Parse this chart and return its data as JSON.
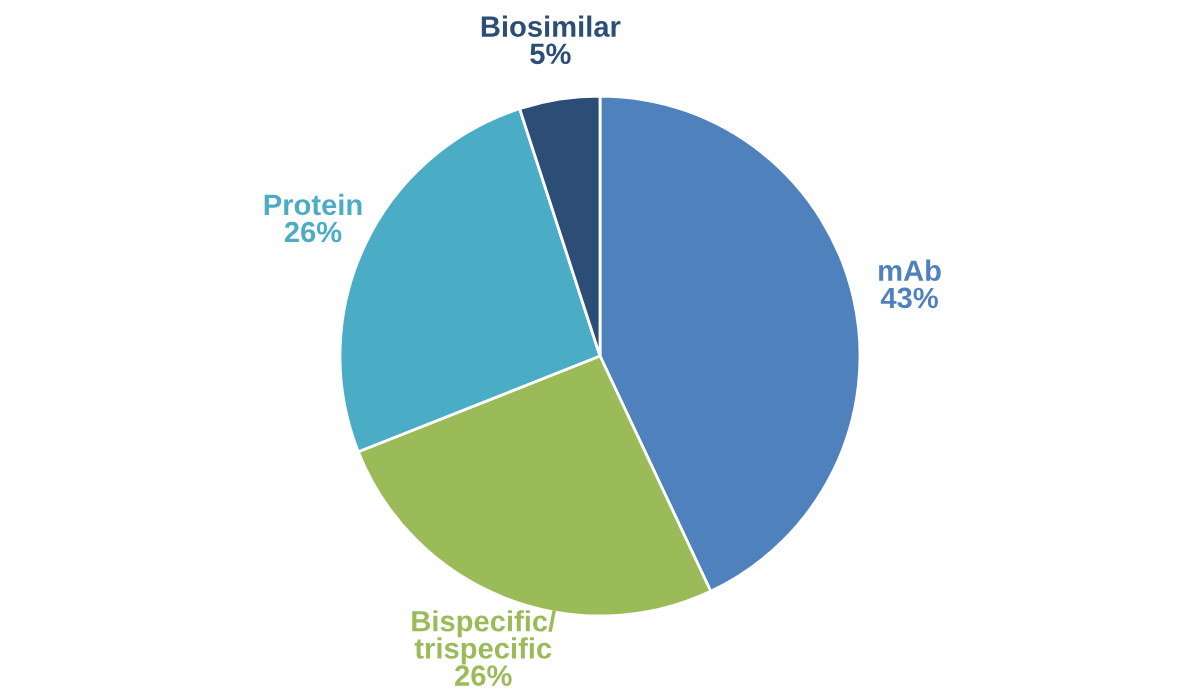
{
  "chart_data": {
    "type": "pie",
    "categories": [
      "mAb",
      "Bispecific/\ntrispecific",
      "Protein",
      "Biosimilar"
    ],
    "values": [
      43,
      26,
      26,
      5
    ],
    "value_labels": [
      "43%",
      "26%",
      "26%",
      "5%"
    ],
    "colors": [
      "#4f81bd",
      "#9bbb59",
      "#4bacc6",
      "#2c4d75"
    ]
  }
}
